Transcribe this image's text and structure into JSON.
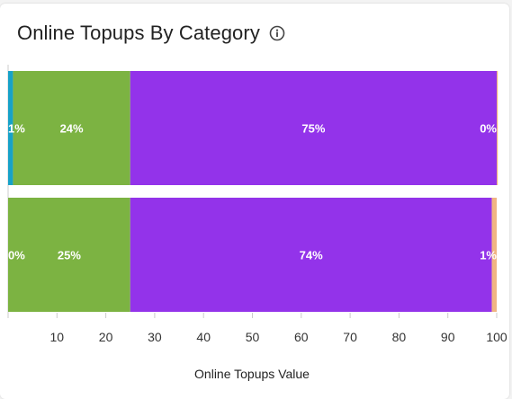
{
  "header": {
    "title": "Online Topups By Category",
    "info_icon": "info-circle-icon"
  },
  "chart_data": {
    "type": "bar",
    "orientation": "horizontal",
    "stacked": "percent",
    "title": "Online Topups By Category",
    "xlabel": "Online Topups Value",
    "ylabel": "",
    "xlim": [
      0,
      100
    ],
    "x_ticks": [
      "10",
      "20",
      "30",
      "40",
      "50",
      "60",
      "70",
      "80",
      "90",
      "100"
    ],
    "bars": 2,
    "series": [
      {
        "color": "#17a2c8",
        "values": [
          1,
          0
        ],
        "labels": [
          "1%",
          "0%"
        ]
      },
      {
        "color": "#7cb342",
        "values": [
          24,
          25
        ],
        "labels": [
          "24%",
          "25%"
        ]
      },
      {
        "color": "#9333ea",
        "values": [
          75,
          74
        ],
        "labels": [
          "75%",
          "74%"
        ]
      },
      {
        "color": "#f0b483",
        "values": [
          0,
          1
        ],
        "labels": [
          "0%",
          "1%"
        ]
      }
    ],
    "grid": false,
    "legend": "none"
  }
}
